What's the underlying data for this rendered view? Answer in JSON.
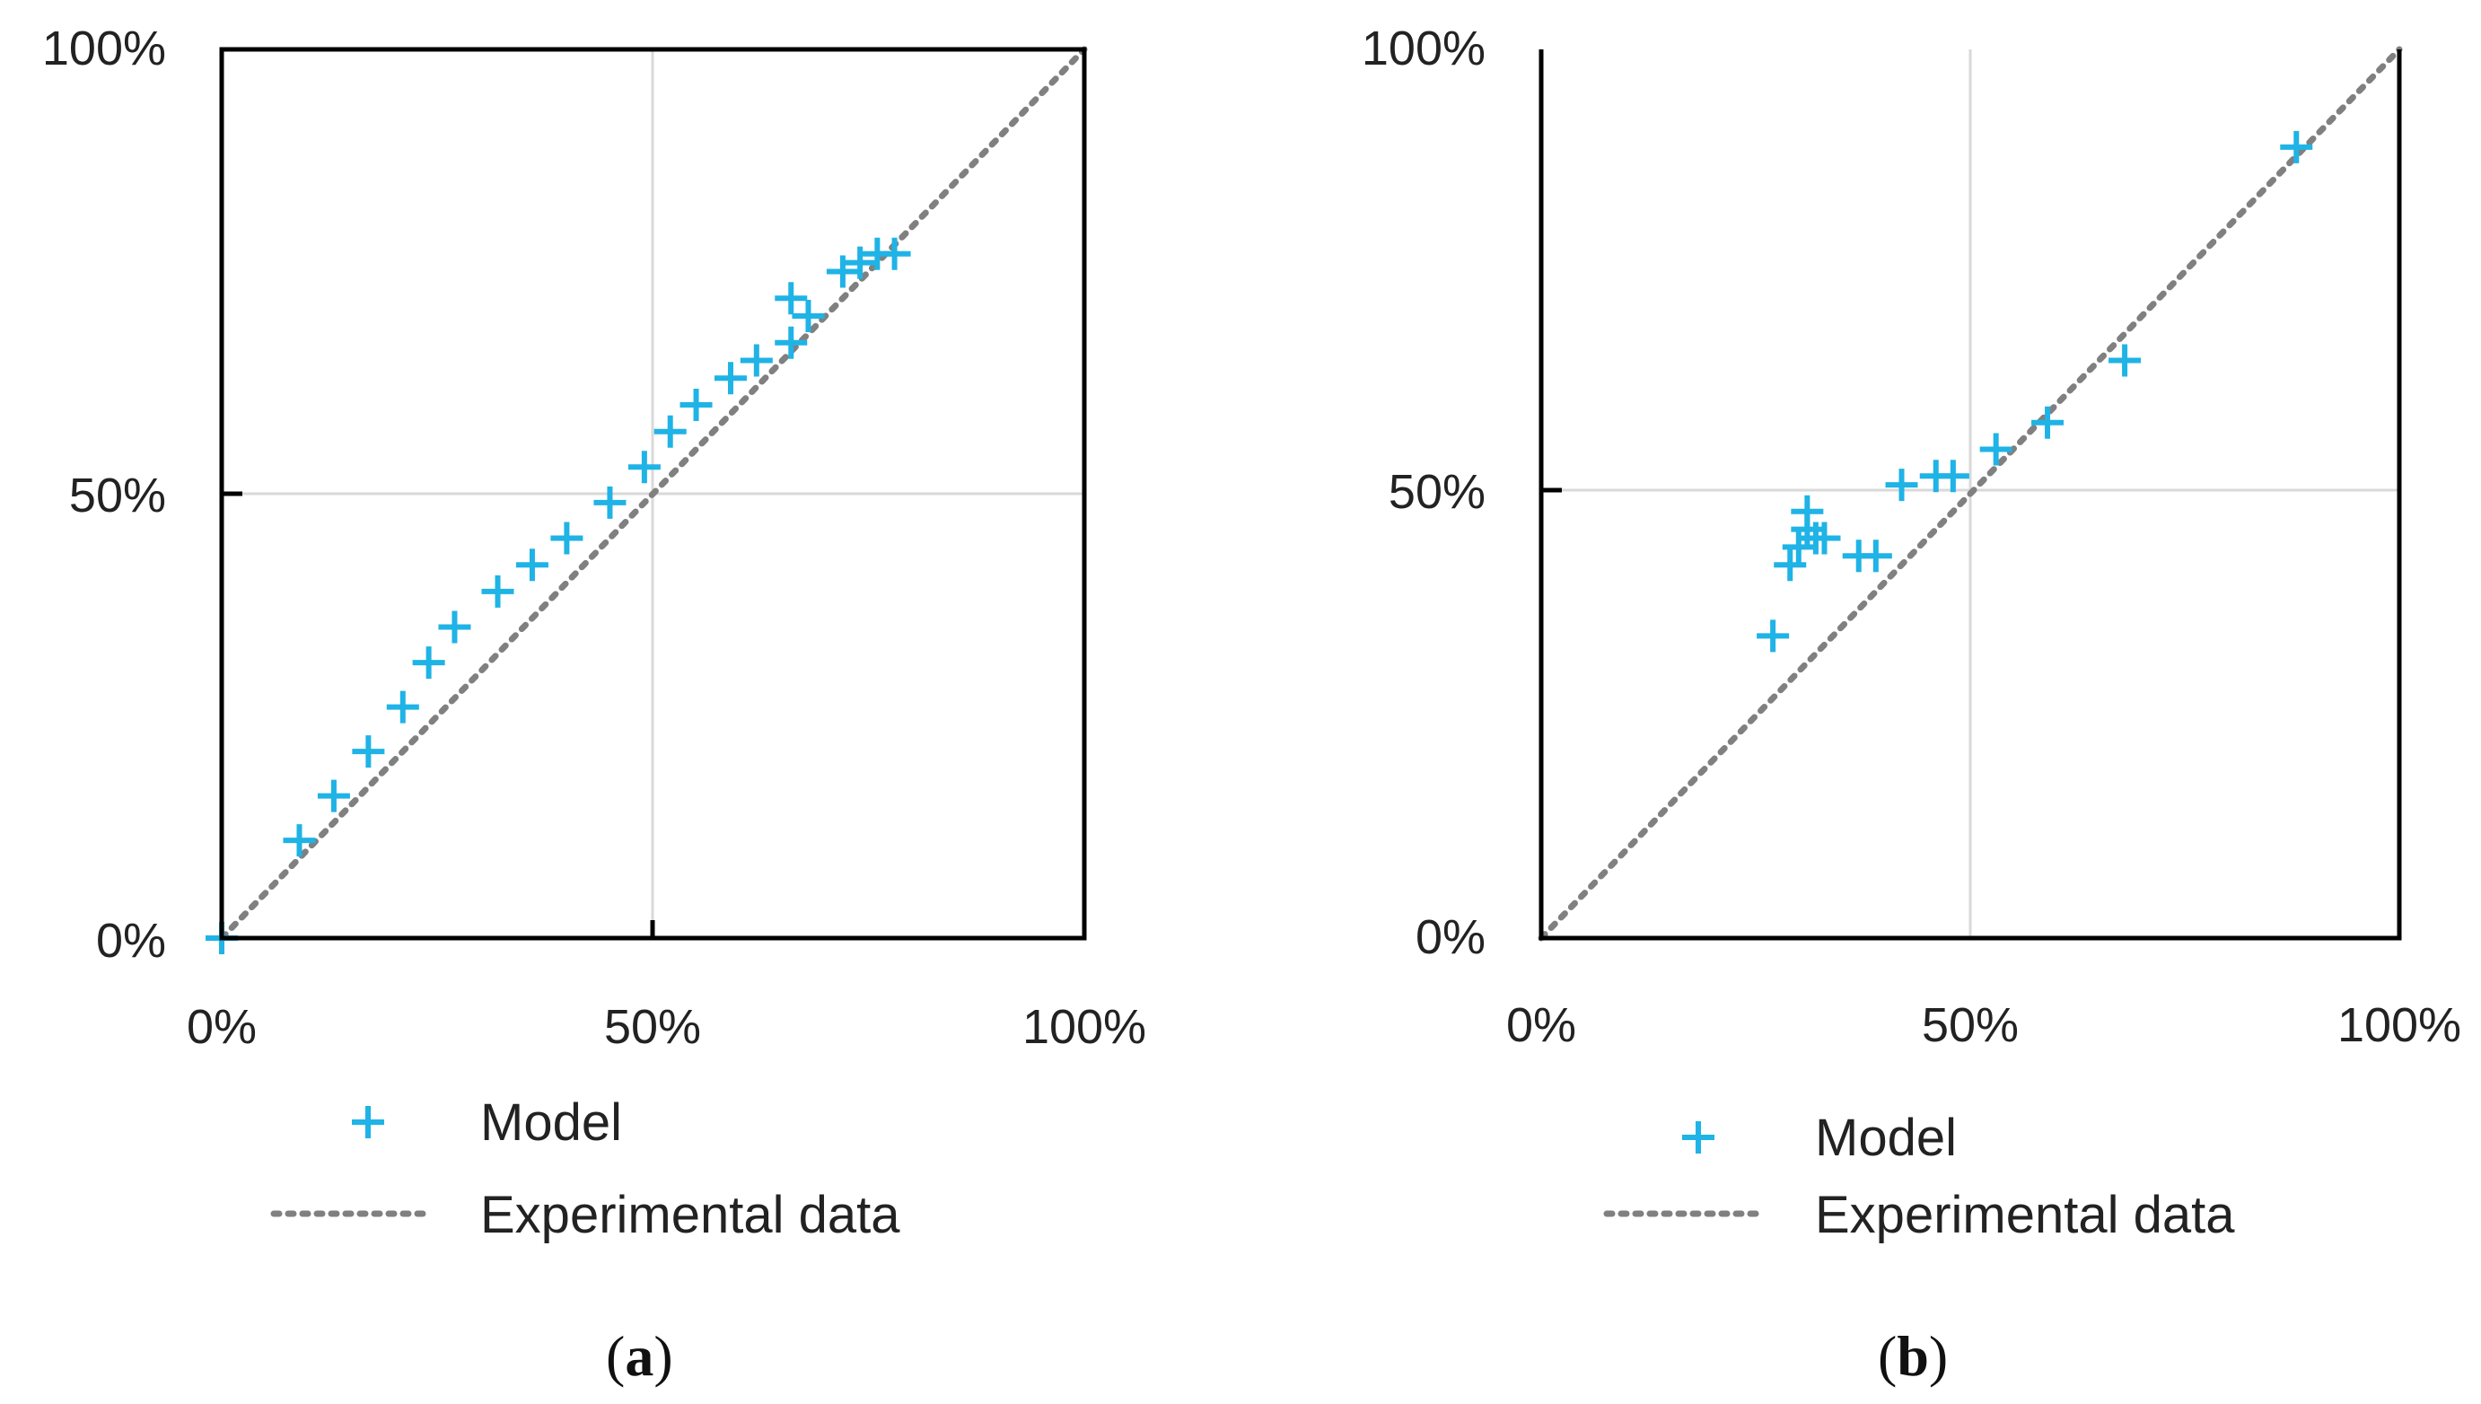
{
  "chart_data": [
    {
      "type": "scatter",
      "panel_label": "(a)",
      "panel_letter": "a",
      "x_ticks": [
        "0%",
        "50%",
        "100%"
      ],
      "y_ticks": [
        "0%",
        "50%",
        "100%"
      ],
      "xlim": [
        0,
        100
      ],
      "ylim": [
        0,
        100
      ],
      "grid": true,
      "series": [
        {
          "name": "Model",
          "marker": "plus",
          "color": "#1FB3E6",
          "points": [
            [
              0,
              0
            ],
            [
              9,
              11
            ],
            [
              13,
              16
            ],
            [
              17,
              21
            ],
            [
              21,
              26
            ],
            [
              24,
              31
            ],
            [
              27,
              35
            ],
            [
              32,
              39
            ],
            [
              36,
              42
            ],
            [
              40,
              45
            ],
            [
              45,
              49
            ],
            [
              49,
              53
            ],
            [
              52,
              57
            ],
            [
              55,
              60
            ],
            [
              59,
              63
            ],
            [
              62,
              65
            ],
            [
              66,
              67
            ],
            [
              66,
              72
            ],
            [
              68,
              70
            ],
            [
              72,
              75
            ],
            [
              74,
              76
            ],
            [
              76,
              77
            ],
            [
              78,
              77
            ]
          ]
        },
        {
          "name": "Experimental data",
          "style": "dotted-line",
          "color": "#808080",
          "points": [
            [
              0,
              0
            ],
            [
              100,
              100
            ]
          ]
        }
      ],
      "legend": [
        {
          "label": "Model",
          "marker": "plus"
        },
        {
          "label": "Experimental data",
          "marker": "dotted-line"
        }
      ],
      "legend_position": "below"
    },
    {
      "type": "scatter",
      "panel_label": "(b)",
      "panel_letter": "b",
      "x_ticks": [
        "0%",
        "50%",
        "100%"
      ],
      "y_ticks": [
        "0%",
        "50%",
        "100%"
      ],
      "xlim": [
        0,
        100
      ],
      "ylim": [
        0,
        100
      ],
      "grid": true,
      "series": [
        {
          "name": "Model",
          "marker": "plus",
          "color": "#1FB3E6",
          "points": [
            [
              27,
              34
            ],
            [
              29,
              42
            ],
            [
              30,
              44
            ],
            [
              31,
              46
            ],
            [
              31,
              48
            ],
            [
              32,
              45
            ],
            [
              33,
              45
            ],
            [
              37,
              43
            ],
            [
              39,
              43
            ],
            [
              42,
              51
            ],
            [
              46,
              52
            ],
            [
              48,
              52
            ],
            [
              53,
              55
            ],
            [
              59,
              58
            ],
            [
              68,
              65
            ],
            [
              88,
              89
            ]
          ]
        },
        {
          "name": "Experimental data",
          "style": "dotted-line",
          "color": "#808080",
          "points": [
            [
              0,
              0
            ],
            [
              100,
              100
            ]
          ]
        }
      ],
      "legend": [
        {
          "label": "Model",
          "marker": "plus"
        },
        {
          "label": "Experimental data",
          "marker": "dotted-line"
        }
      ],
      "legend_position": "below"
    }
  ]
}
